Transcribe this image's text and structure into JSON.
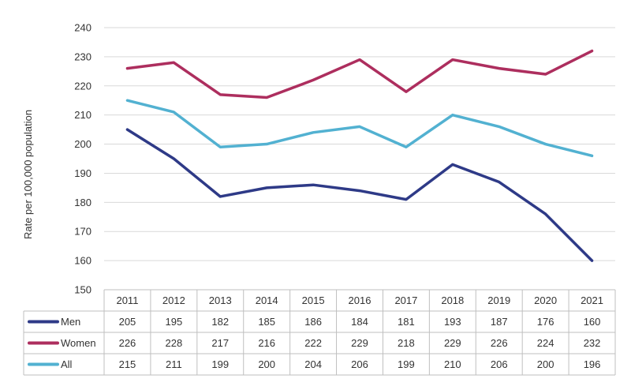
{
  "chart_data": {
    "type": "line",
    "ylabel": "Rate per 100,000 population",
    "ylim": [
      150,
      240
    ],
    "yticks": [
      150,
      160,
      170,
      180,
      190,
      200,
      210,
      220,
      230,
      240
    ],
    "grid": true,
    "legend": "data-table-left",
    "categories": [
      "2011",
      "2012",
      "2013",
      "2014",
      "2015",
      "2016",
      "2017",
      "2018",
      "2019",
      "2020",
      "2021"
    ],
    "series": [
      {
        "name": "Men",
        "color": "#2e3a87",
        "values": [
          205,
          195,
          182,
          185,
          186,
          184,
          181,
          193,
          187,
          176,
          160
        ]
      },
      {
        "name": "Women",
        "color": "#ad2e5e",
        "values": [
          226,
          228,
          217,
          216,
          222,
          229,
          218,
          229,
          226,
          224,
          232
        ]
      },
      {
        "name": "All",
        "color": "#52b1d1",
        "values": [
          215,
          211,
          199,
          200,
          204,
          206,
          199,
          210,
          206,
          200,
          196
        ]
      }
    ]
  }
}
